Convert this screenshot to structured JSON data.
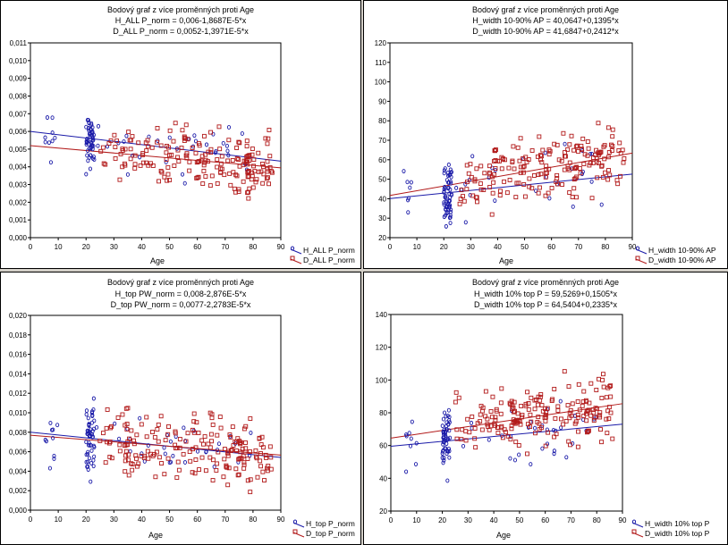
{
  "colors": {
    "h": "#1a1aa8",
    "d": "#b21a1a",
    "grid": "#000000"
  },
  "chart_data": [
    {
      "type": "scatter",
      "title": "Bodový graf z více proměnných proti Age",
      "subtitles": [
        "H_ALL P_norm = 0,006-1,8687E-5*x",
        "D_ALL P_norm = 0,0052-1,3971E-5*x"
      ],
      "xlabel": "Age",
      "xlim": [
        0,
        90
      ],
      "ylim": [
        0.0,
        0.011
      ],
      "xticks": [
        "0",
        "10",
        "20",
        "30",
        "40",
        "50",
        "60",
        "70",
        "80",
        "90"
      ],
      "yticks": [
        "0,000",
        "0,001",
        "0,002",
        "0,003",
        "0,004",
        "0,005",
        "0,006",
        "0,007",
        "0,008",
        "0,009",
        "0,010",
        "0,011"
      ],
      "series": [
        {
          "name": "H_ALL P_norm",
          "intercept": 0.006,
          "slope": -1.8687e-05,
          "seed": 11
        },
        {
          "name": "D_ALL P_norm",
          "intercept": 0.0052,
          "slope": -1.3971e-05,
          "seed": 12
        }
      ]
    },
    {
      "type": "scatter",
      "title": "Bodový graf z více proměnných proti Age",
      "subtitles": [
        "H_width 10-90% AP = 40,0647+0,1395*x",
        "D_width 10-90% AP = 41,6847+0,2412*x"
      ],
      "xlabel": "Age",
      "xlim": [
        0,
        90
      ],
      "ylim": [
        20,
        120
      ],
      "xticks": [
        "0",
        "10",
        "20",
        "30",
        "40",
        "50",
        "60",
        "70",
        "80",
        "90"
      ],
      "yticks": [
        "20",
        "30",
        "40",
        "50",
        "60",
        "70",
        "80",
        "90",
        "100",
        "110",
        "120"
      ],
      "series": [
        {
          "name": "H_width 10-90% AP",
          "intercept": 40.0647,
          "slope": 0.1395,
          "seed": 21
        },
        {
          "name": "D_width 10-90% AP",
          "intercept": 41.6847,
          "slope": 0.2412,
          "seed": 22
        }
      ]
    },
    {
      "type": "scatter",
      "title": "Bodový graf z více proměnných proti Age",
      "subtitles": [
        "H_top PW_norm = 0,008-2,876E-5*x",
        "D_top PW_norm = 0,0077-2,2783E-5*x"
      ],
      "xlabel": "Age",
      "xlim": [
        0,
        90
      ],
      "ylim": [
        0.0,
        0.02
      ],
      "xticks": [
        "0",
        "10",
        "20",
        "30",
        "40",
        "50",
        "60",
        "70",
        "80",
        "90"
      ],
      "yticks": [
        "0,000",
        "0,002",
        "0,004",
        "0,006",
        "0,008",
        "0,010",
        "0,012",
        "0,014",
        "0,016",
        "0,018",
        "0,020"
      ],
      "series": [
        {
          "name": "H_top P_norm",
          "intercept": 0.008,
          "slope": -2.876e-05,
          "seed": 31
        },
        {
          "name": "D_top P_norm",
          "intercept": 0.0077,
          "slope": -2.2783e-05,
          "seed": 32
        }
      ]
    },
    {
      "type": "scatter",
      "title": "Bodový graf z více proměnných proti Age",
      "subtitles": [
        "H_width 10% top P = 59,5269+0,1505*x",
        "D_width 10% top P = 64,5404+0,2335*x"
      ],
      "xlabel": "Age",
      "xlim": [
        0,
        90
      ],
      "ylim": [
        20,
        140
      ],
      "xticks": [
        "0",
        "10",
        "20",
        "30",
        "40",
        "50",
        "60",
        "70",
        "80",
        "90"
      ],
      "yticks": [
        "20",
        "40",
        "60",
        "80",
        "100",
        "120",
        "140"
      ],
      "series": [
        {
          "name": "H_width 10% top P",
          "intercept": 59.5269,
          "slope": 0.1505,
          "seed": 41
        },
        {
          "name": "D_width 10% top P",
          "intercept": 64.5404,
          "slope": 0.2335,
          "seed": 42
        }
      ]
    }
  ]
}
